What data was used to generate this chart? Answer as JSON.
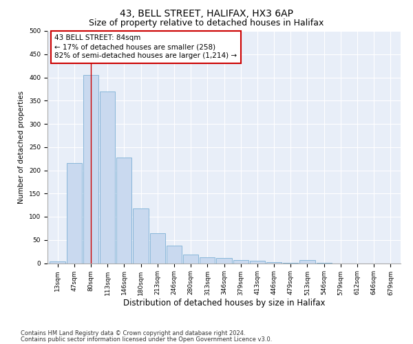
{
  "title1": "43, BELL STREET, HALIFAX, HX3 6AP",
  "title2": "Size of property relative to detached houses in Halifax",
  "xlabel": "Distribution of detached houses by size in Halifax",
  "ylabel": "Number of detached properties",
  "categories": [
    "13sqm",
    "47sqm",
    "80sqm",
    "113sqm",
    "146sqm",
    "180sqm",
    "213sqm",
    "246sqm",
    "280sqm",
    "313sqm",
    "346sqm",
    "379sqm",
    "413sqm",
    "446sqm",
    "479sqm",
    "513sqm",
    "546sqm",
    "579sqm",
    "612sqm",
    "646sqm",
    "679sqm"
  ],
  "values": [
    3,
    215,
    405,
    370,
    228,
    118,
    65,
    38,
    18,
    13,
    11,
    6,
    5,
    2,
    1,
    6,
    1,
    0,
    0,
    0,
    0
  ],
  "bar_color": "#c9d9ef",
  "bar_edge_color": "#7bafd4",
  "red_line_index": 2,
  "annotation_line1": "43 BELL STREET: 84sqm",
  "annotation_line2": "← 17% of detached houses are smaller (258)",
  "annotation_line3": "82% of semi-detached houses are larger (1,214) →",
  "annotation_box_color": "#ffffff",
  "annotation_box_edge": "#cc0000",
  "ylim": [
    0,
    500
  ],
  "yticks": [
    0,
    50,
    100,
    150,
    200,
    250,
    300,
    350,
    400,
    450,
    500
  ],
  "footer1": "Contains HM Land Registry data © Crown copyright and database right 2024.",
  "footer2": "Contains public sector information licensed under the Open Government Licence v3.0.",
  "bg_color": "#ffffff",
  "plot_bg_color": "#e8eef8",
  "title1_fontsize": 10,
  "title2_fontsize": 9,
  "xlabel_fontsize": 8.5,
  "ylabel_fontsize": 7.5,
  "tick_fontsize": 6.5,
  "annotation_fontsize": 7.5,
  "footer_fontsize": 6
}
